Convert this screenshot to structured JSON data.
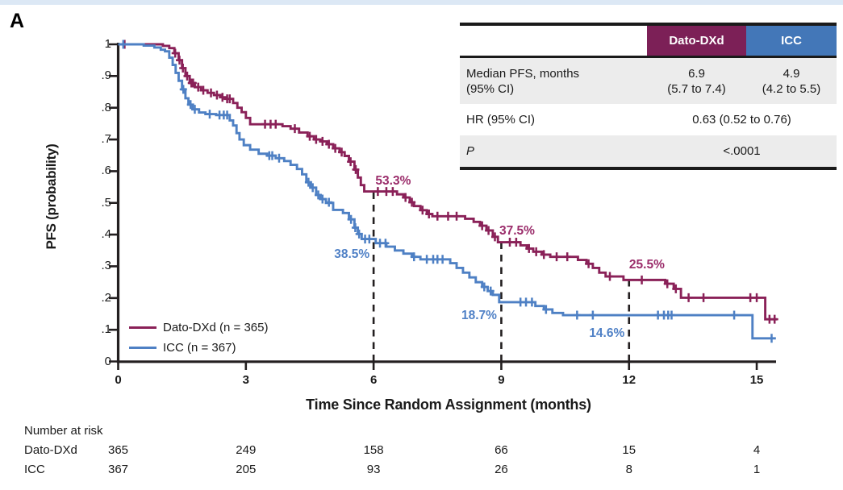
{
  "panel_label": "A",
  "colors": {
    "dato": "#8A2158",
    "dato_header": "#7C2057",
    "icc": "#4E80C4",
    "icc_header": "#4377B8",
    "dato_annotation": "#9B2D6B",
    "icc_annotation": "#5081C6",
    "axis": "#231F20",
    "table_shade": "#ECECEC",
    "top_strip": "#DCE8F5"
  },
  "summary_table": {
    "header": {
      "dato": "Dato-DXd",
      "icc": "ICC"
    },
    "median_row": {
      "label_line1": "Median PFS, months",
      "label_line2": "(95% CI)",
      "dato_value": "6.9",
      "dato_ci": "(5.7 to 7.4)",
      "icc_value": "4.9",
      "icc_ci": "(4.2 to 5.5)"
    },
    "hr_row": {
      "label": "HR (95% CI)",
      "value": "0.63 (0.52 to 0.76)"
    },
    "p_row": {
      "label": "P",
      "value": "<.0001"
    }
  },
  "chart_data": {
    "type": "line",
    "subtype": "kaplan-meier-step",
    "title": "",
    "xlabel": "Time Since Random Assignment (months)",
    "ylabel": "PFS (probability)",
    "xlim": [
      0,
      15.6
    ],
    "ylim": [
      0,
      1
    ],
    "grid": false,
    "legend_position": "lower-left",
    "xticks": [
      0,
      3,
      6,
      9,
      12,
      15
    ],
    "xtick_labels": [
      "0",
      "3",
      "6",
      "9",
      "12",
      "15"
    ],
    "ytick_values": [
      0,
      0.1,
      0.2,
      0.3,
      0.4,
      0.5,
      0.6,
      0.7,
      0.8,
      0.9,
      1
    ],
    "ytick_labels": [
      "0",
      ".1",
      ".2",
      ".3",
      ".4",
      ".5",
      ".6",
      ".7",
      ".8",
      ".9",
      "1"
    ],
    "series": [
      {
        "key": "dato",
        "name": "Dato-DXd (n = 365)",
        "color": "#8A2158",
        "end_x": 15.48,
        "steps": [
          [
            0,
            1.0
          ],
          [
            1.05,
            0.995
          ],
          [
            1.2,
            0.988
          ],
          [
            1.32,
            0.972
          ],
          [
            1.42,
            0.95
          ],
          [
            1.5,
            0.925
          ],
          [
            1.58,
            0.9
          ],
          [
            1.68,
            0.878
          ],
          [
            1.8,
            0.865
          ],
          [
            1.95,
            0.855
          ],
          [
            2.1,
            0.847
          ],
          [
            2.25,
            0.84
          ],
          [
            2.4,
            0.833
          ],
          [
            2.52,
            0.828
          ],
          [
            2.7,
            0.815
          ],
          [
            2.8,
            0.8
          ],
          [
            2.9,
            0.786
          ],
          [
            3.0,
            0.768
          ],
          [
            3.1,
            0.748
          ],
          [
            3.86,
            0.742
          ],
          [
            4.05,
            0.734
          ],
          [
            4.25,
            0.722
          ],
          [
            4.45,
            0.71
          ],
          [
            4.6,
            0.7
          ],
          [
            4.75,
            0.694
          ],
          [
            4.9,
            0.685
          ],
          [
            5.05,
            0.672
          ],
          [
            5.2,
            0.66
          ],
          [
            5.32,
            0.648
          ],
          [
            5.42,
            0.63
          ],
          [
            5.55,
            0.605
          ],
          [
            5.63,
            0.58
          ],
          [
            5.7,
            0.556
          ],
          [
            5.78,
            0.536
          ],
          [
            6.55,
            0.527
          ],
          [
            6.7,
            0.517
          ],
          [
            6.85,
            0.502
          ],
          [
            6.95,
            0.49
          ],
          [
            7.1,
            0.477
          ],
          [
            7.25,
            0.465
          ],
          [
            7.38,
            0.458
          ],
          [
            8.15,
            0.45
          ],
          [
            8.35,
            0.44
          ],
          [
            8.5,
            0.428
          ],
          [
            8.65,
            0.413
          ],
          [
            8.8,
            0.393
          ],
          [
            8.92,
            0.376
          ],
          [
            9.45,
            0.366
          ],
          [
            9.6,
            0.356
          ],
          [
            9.75,
            0.346
          ],
          [
            9.95,
            0.337
          ],
          [
            10.15,
            0.33
          ],
          [
            10.8,
            0.32
          ],
          [
            11.0,
            0.308
          ],
          [
            11.15,
            0.295
          ],
          [
            11.3,
            0.28
          ],
          [
            11.45,
            0.268
          ],
          [
            11.87,
            0.257
          ],
          [
            12.85,
            0.245
          ],
          [
            13.05,
            0.229
          ],
          [
            13.22,
            0.201
          ],
          [
            15.2,
            0.133
          ]
        ],
        "censors": [
          [
            0.15,
            1.0
          ],
          [
            1.34,
            0.972
          ],
          [
            1.44,
            0.95
          ],
          [
            1.52,
            0.925
          ],
          [
            1.62,
            0.9
          ],
          [
            1.72,
            0.878
          ],
          [
            1.76,
            0.878
          ],
          [
            1.88,
            0.865
          ],
          [
            2.0,
            0.855
          ],
          [
            2.18,
            0.847
          ],
          [
            2.32,
            0.84
          ],
          [
            2.45,
            0.833
          ],
          [
            2.56,
            0.828
          ],
          [
            2.62,
            0.828
          ],
          [
            3.45,
            0.748
          ],
          [
            3.58,
            0.748
          ],
          [
            3.7,
            0.748
          ],
          [
            4.15,
            0.734
          ],
          [
            4.5,
            0.71
          ],
          [
            4.65,
            0.7
          ],
          [
            4.8,
            0.694
          ],
          [
            4.95,
            0.685
          ],
          [
            5.1,
            0.672
          ],
          [
            5.25,
            0.66
          ],
          [
            5.46,
            0.63
          ],
          [
            5.58,
            0.605
          ],
          [
            6.1,
            0.536
          ],
          [
            6.3,
            0.536
          ],
          [
            6.45,
            0.536
          ],
          [
            6.75,
            0.517
          ],
          [
            6.9,
            0.502
          ],
          [
            7.15,
            0.477
          ],
          [
            7.3,
            0.465
          ],
          [
            7.5,
            0.458
          ],
          [
            7.75,
            0.458
          ],
          [
            7.95,
            0.458
          ],
          [
            8.55,
            0.428
          ],
          [
            8.7,
            0.413
          ],
          [
            8.85,
            0.393
          ],
          [
            9.2,
            0.376
          ],
          [
            9.35,
            0.376
          ],
          [
            9.65,
            0.356
          ],
          [
            9.82,
            0.346
          ],
          [
            10.0,
            0.337
          ],
          [
            10.3,
            0.33
          ],
          [
            10.55,
            0.33
          ],
          [
            11.05,
            0.308
          ],
          [
            11.55,
            0.268
          ],
          [
            12.3,
            0.257
          ],
          [
            12.9,
            0.245
          ],
          [
            13.1,
            0.229
          ],
          [
            13.4,
            0.201
          ],
          [
            13.75,
            0.201
          ],
          [
            14.85,
            0.201
          ],
          [
            15.0,
            0.201
          ],
          [
            15.3,
            0.133
          ],
          [
            15.42,
            0.133
          ]
        ]
      },
      {
        "key": "icc",
        "name": "ICC (n = 367)",
        "color": "#4E80C4",
        "end_x": 15.45,
        "steps": [
          [
            0,
            1.0
          ],
          [
            0.6,
            0.996
          ],
          [
            0.85,
            0.99
          ],
          [
            1.0,
            0.983
          ],
          [
            1.1,
            0.978
          ],
          [
            1.2,
            0.958
          ],
          [
            1.28,
            0.935
          ],
          [
            1.35,
            0.91
          ],
          [
            1.42,
            0.885
          ],
          [
            1.5,
            0.858
          ],
          [
            1.58,
            0.83
          ],
          [
            1.65,
            0.81
          ],
          [
            1.75,
            0.795
          ],
          [
            1.9,
            0.785
          ],
          [
            2.05,
            0.78
          ],
          [
            2.3,
            0.777
          ],
          [
            2.62,
            0.76
          ],
          [
            2.7,
            0.744
          ],
          [
            2.78,
            0.72
          ],
          [
            2.85,
            0.7
          ],
          [
            2.95,
            0.682
          ],
          [
            3.1,
            0.668
          ],
          [
            3.3,
            0.655
          ],
          [
            3.5,
            0.649
          ],
          [
            3.7,
            0.641
          ],
          [
            3.9,
            0.632
          ],
          [
            4.05,
            0.62
          ],
          [
            4.2,
            0.607
          ],
          [
            4.32,
            0.59
          ],
          [
            4.42,
            0.565
          ],
          [
            4.52,
            0.548
          ],
          [
            4.65,
            0.525
          ],
          [
            4.75,
            0.512
          ],
          [
            4.88,
            0.5
          ],
          [
            5.05,
            0.478
          ],
          [
            5.28,
            0.468
          ],
          [
            5.42,
            0.448
          ],
          [
            5.55,
            0.422
          ],
          [
            5.63,
            0.402
          ],
          [
            5.72,
            0.386
          ],
          [
            6.05,
            0.373
          ],
          [
            6.3,
            0.362
          ],
          [
            6.5,
            0.35
          ],
          [
            6.7,
            0.34
          ],
          [
            6.9,
            0.33
          ],
          [
            7.1,
            0.322
          ],
          [
            7.8,
            0.31
          ],
          [
            7.95,
            0.295
          ],
          [
            8.1,
            0.28
          ],
          [
            8.25,
            0.265
          ],
          [
            8.4,
            0.25
          ],
          [
            8.55,
            0.235
          ],
          [
            8.68,
            0.222
          ],
          [
            8.8,
            0.21
          ],
          [
            8.95,
            0.187
          ],
          [
            9.8,
            0.175
          ],
          [
            10.0,
            0.164
          ],
          [
            10.2,
            0.153
          ],
          [
            10.45,
            0.146
          ],
          [
            14.9,
            0.073
          ]
        ],
        "censors": [
          [
            0.12,
            1.0
          ],
          [
            1.53,
            0.858
          ],
          [
            1.7,
            0.81
          ],
          [
            1.8,
            0.795
          ],
          [
            2.15,
            0.78
          ],
          [
            2.38,
            0.777
          ],
          [
            2.48,
            0.777
          ],
          [
            2.56,
            0.777
          ],
          [
            3.55,
            0.649
          ],
          [
            3.62,
            0.649
          ],
          [
            3.78,
            0.641
          ],
          [
            4.47,
            0.565
          ],
          [
            4.57,
            0.548
          ],
          [
            4.7,
            0.525
          ],
          [
            4.8,
            0.512
          ],
          [
            4.95,
            0.502
          ],
          [
            5.47,
            0.448
          ],
          [
            5.57,
            0.422
          ],
          [
            5.66,
            0.402
          ],
          [
            5.8,
            0.386
          ],
          [
            5.9,
            0.386
          ],
          [
            6.15,
            0.373
          ],
          [
            6.28,
            0.373
          ],
          [
            6.95,
            0.33
          ],
          [
            7.25,
            0.322
          ],
          [
            7.4,
            0.322
          ],
          [
            7.5,
            0.322
          ],
          [
            7.62,
            0.322
          ],
          [
            8.6,
            0.235
          ],
          [
            8.75,
            0.222
          ],
          [
            9.45,
            0.187
          ],
          [
            9.58,
            0.187
          ],
          [
            9.72,
            0.187
          ],
          [
            10.05,
            0.164
          ],
          [
            10.78,
            0.146
          ],
          [
            11.15,
            0.146
          ],
          [
            12.68,
            0.146
          ],
          [
            12.82,
            0.146
          ],
          [
            12.92,
            0.146
          ],
          [
            13.0,
            0.146
          ],
          [
            14.47,
            0.146
          ],
          [
            15.35,
            0.073
          ]
        ]
      }
    ],
    "dashed_reference_lines": [
      {
        "x": 6
      },
      {
        "x": 9
      },
      {
        "x": 12
      }
    ],
    "annotations": [
      {
        "text": "53.3%",
        "series": "dato",
        "x": 6.46,
        "y": 0.567
      },
      {
        "text": "38.5%",
        "series": "icc",
        "x": 5.49,
        "y": 0.336
      },
      {
        "text": "37.5%",
        "series": "dato",
        "x": 9.37,
        "y": 0.41
      },
      {
        "text": "18.7%",
        "series": "icc",
        "x": 8.48,
        "y": 0.143
      },
      {
        "text": "25.5%",
        "series": "dato",
        "x": 12.42,
        "y": 0.303
      },
      {
        "text": "14.6%",
        "series": "icc",
        "x": 11.48,
        "y": 0.087
      }
    ],
    "number_at_risk": {
      "title": "Number at risk",
      "times": [
        0,
        3,
        6,
        9,
        12,
        15
      ],
      "rows": [
        {
          "label": "Dato-DXd",
          "values": [
            "365",
            "249",
            "158",
            "66",
            "15",
            "4"
          ]
        },
        {
          "label": "ICC",
          "values": [
            "367",
            "205",
            "93",
            "26",
            "8",
            "1"
          ]
        }
      ]
    }
  }
}
